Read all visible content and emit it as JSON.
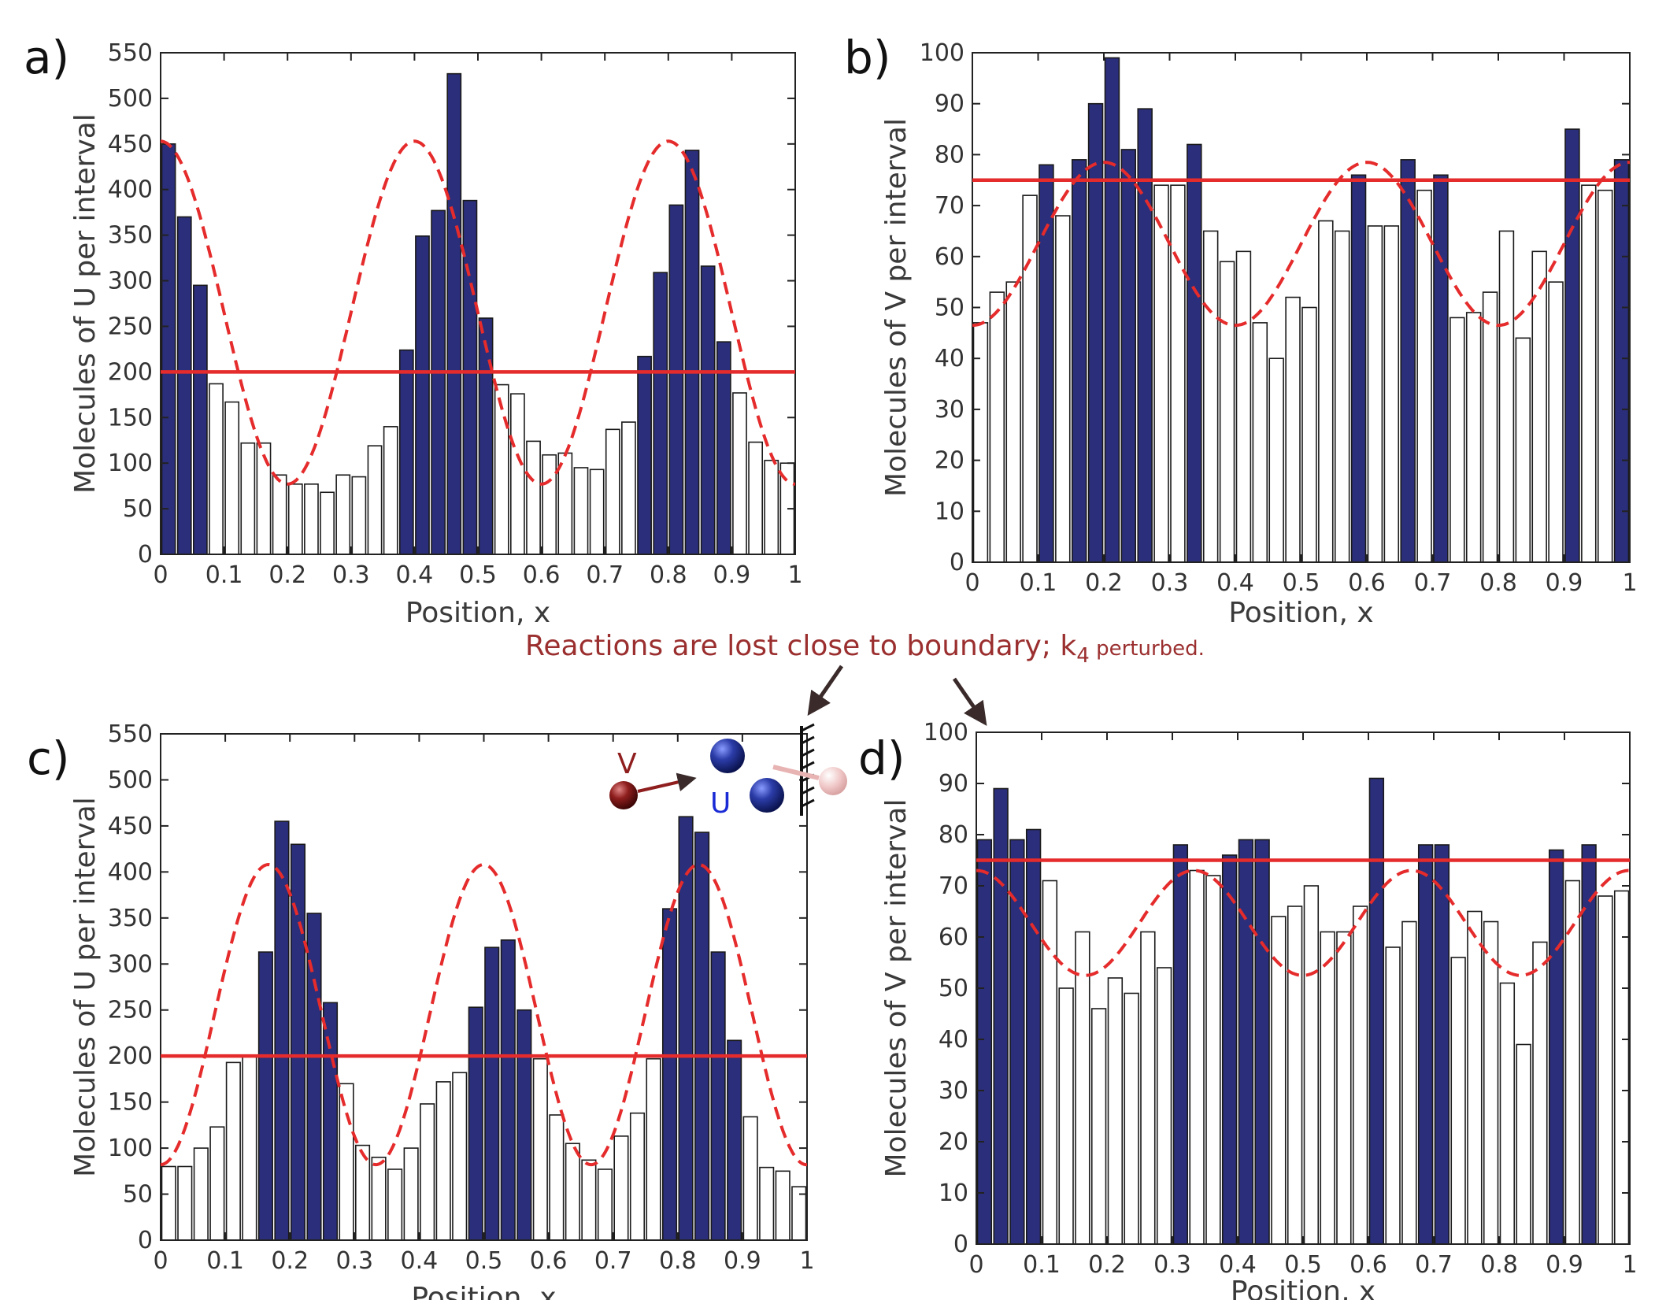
{
  "annotation": {
    "main": "Reactions are lost close to boundary; k",
    "sub": "4",
    "tail": " perturbed."
  },
  "inset": {
    "v_label": "V",
    "u_label": "U"
  },
  "colors": {
    "bar_high": "#2b2e7a",
    "bar_low": "#ffffff",
    "line": "#e52b2b",
    "annotation": "#9b2f2f"
  },
  "chart_data": [
    {
      "id": "a",
      "panel_label": "a)",
      "type": "bar",
      "xlabel": "Position, x",
      "ylabel": "Molecules of U per interval",
      "xlim": [
        0,
        1
      ],
      "ylim": [
        0,
        550
      ],
      "xticks": [
        "0",
        "0.1",
        "0.2",
        "0.3",
        "0.4",
        "0.5",
        "0.6",
        "0.7",
        "0.8",
        "0.9",
        "1"
      ],
      "yticks": [
        "0",
        "50",
        "100",
        "150",
        "200",
        "250",
        "300",
        "350",
        "400",
        "450",
        "500",
        "550"
      ],
      "threshold": 200,
      "curve": {
        "mean": 265,
        "amp": 188,
        "period": 0.4,
        "phase": 0
      },
      "values": [
        450,
        370,
        295,
        187,
        167,
        122,
        122,
        87,
        77,
        77,
        68,
        87,
        85,
        119,
        140,
        224,
        349,
        377,
        527,
        388,
        259,
        186,
        176,
        124,
        109,
        111,
        95,
        93,
        137,
        145,
        217,
        309,
        383,
        443,
        316,
        233,
        177,
        123,
        103,
        100
      ]
    },
    {
      "id": "b",
      "panel_label": "b)",
      "type": "bar",
      "xlabel": "Position, x",
      "ylabel": "Molecules of V per interval",
      "xlim": [
        0,
        1
      ],
      "ylim": [
        0,
        100
      ],
      "xticks": [
        "0",
        "0.1",
        "0.2",
        "0.3",
        "0.4",
        "0.5",
        "0.6",
        "0.7",
        "0.8",
        "0.9",
        "1"
      ],
      "yticks": [
        "0",
        "10",
        "20",
        "30",
        "40",
        "50",
        "60",
        "70",
        "80",
        "90",
        "100"
      ],
      "threshold": 75,
      "curve": {
        "mean": 62.5,
        "amp": -16,
        "period": 0.4,
        "phase": 0
      },
      "values": [
        47,
        53,
        55,
        72,
        78,
        68,
        79,
        90,
        99,
        81,
        89,
        74,
        74,
        82,
        65,
        59,
        61,
        47,
        40,
        52,
        50,
        67,
        65,
        76,
        66,
        66,
        79,
        73,
        76,
        48,
        49,
        53,
        65,
        44,
        61,
        55,
        85,
        74,
        73,
        79
      ]
    },
    {
      "id": "c",
      "panel_label": "c)",
      "type": "bar",
      "xlabel": "Position, x",
      "ylabel": "Molecules of U per interval",
      "xlim": [
        0,
        1
      ],
      "ylim": [
        0,
        550
      ],
      "xticks": [
        "0",
        "0.1",
        "0.2",
        "0.3",
        "0.4",
        "0.5",
        "0.6",
        "0.7",
        "0.8",
        "0.9",
        "1"
      ],
      "yticks": [
        "0",
        "50",
        "100",
        "150",
        "200",
        "250",
        "300",
        "350",
        "400",
        "450",
        "500",
        "550"
      ],
      "threshold": 200,
      "curve": {
        "mean": 245,
        "amp": -163,
        "period": 0.333,
        "phase": 0
      },
      "values": [
        80,
        80,
        100,
        123,
        193,
        200,
        313,
        455,
        430,
        355,
        258,
        170,
        103,
        90,
        77,
        100,
        148,
        172,
        182,
        253,
        318,
        326,
        250,
        197,
        136,
        105,
        87,
        77,
        113,
        138,
        197,
        360,
        460,
        443,
        313,
        217,
        134,
        79,
        75,
        58
      ]
    },
    {
      "id": "d",
      "panel_label": "d)",
      "type": "bar",
      "xlabel": "Position, x",
      "ylabel": "Molecules of V per interval",
      "xlim": [
        0,
        1
      ],
      "ylim": [
        0,
        100
      ],
      "xticks": [
        "0",
        "0.1",
        "0.2",
        "0.3",
        "0.4",
        "0.5",
        "0.6",
        "0.7",
        "0.8",
        "0.9",
        "1"
      ],
      "yticks": [
        "0",
        "10",
        "20",
        "30",
        "40",
        "50",
        "60",
        "70",
        "80",
        "90",
        "100"
      ],
      "threshold": 75,
      "curve": {
        "mean": 62.75,
        "amp": 10.25,
        "period": 0.333,
        "phase": 0
      },
      "values": [
        79,
        89,
        79,
        81,
        71,
        50,
        61,
        46,
        52,
        49,
        61,
        54,
        78,
        73,
        72,
        76,
        79,
        79,
        64,
        66,
        70,
        61,
        61,
        66,
        91,
        58,
        63,
        78,
        78,
        56,
        65,
        63,
        51,
        39,
        59,
        77,
        71,
        78,
        68,
        69
      ]
    }
  ]
}
